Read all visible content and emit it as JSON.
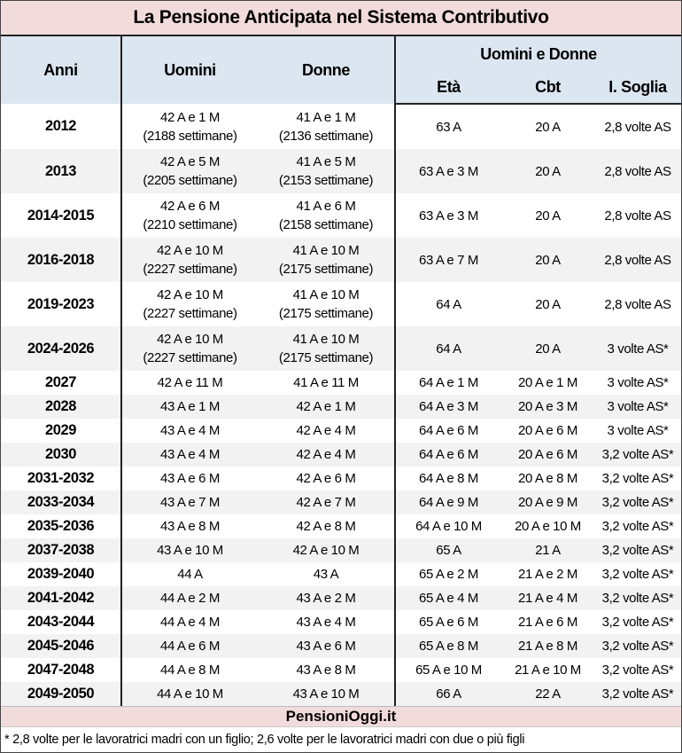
{
  "title": "La Pensione Anticipata nel Sistema Contributivo",
  "headers": {
    "anni": "Anni",
    "uomini": "Uomini",
    "donne": "Donne",
    "group": "Uomini e Donne",
    "eta": "Età",
    "cbt": "Cbt",
    "soglia": "I. Soglia"
  },
  "rows": [
    {
      "anni": "2012",
      "uomini": "42 A e 1 M",
      "uomini_sett": "(2188 settimane)",
      "donne": "41 A e 1 M",
      "donne_sett": "(2136 settimane)",
      "eta": "63 A",
      "cbt": "20 A",
      "soglia": "2,8 volte AS"
    },
    {
      "anni": "2013",
      "uomini": "42 A e 5 M",
      "uomini_sett": "(2205 settimane)",
      "donne": "41 A e 5 M",
      "donne_sett": "(2153 settimane)",
      "eta": "63 A e 3 M",
      "cbt": "20 A",
      "soglia": "2,8 volte AS"
    },
    {
      "anni": "2014-2015",
      "uomini": "42 A e 6 M",
      "uomini_sett": "(2210 settimane)",
      "donne": "41 A e 6 M",
      "donne_sett": "(2158 settimane)",
      "eta": "63 A e 3 M",
      "cbt": "20 A",
      "soglia": "2,8 volte AS"
    },
    {
      "anni": "2016-2018",
      "uomini": "42 A e 10 M",
      "uomini_sett": "(2227 settimane)",
      "donne": "41 A e 10 M",
      "donne_sett": "(2175 settimane)",
      "eta": "63 A e 7 M",
      "cbt": "20 A",
      "soglia": "2,8 volte AS"
    },
    {
      "anni": "2019-2023",
      "uomini": "42 A e 10 M",
      "uomini_sett": "(2227 settimane)",
      "donne": "41 A e 10 M",
      "donne_sett": "(2175 settimane)",
      "eta": "64 A",
      "cbt": "20 A",
      "soglia": "2,8 volte AS"
    },
    {
      "anni": "2024-2026",
      "uomini": "42 A e 10 M",
      "uomini_sett": "(2227 settimane)",
      "donne": "41 A e 10 M",
      "donne_sett": "(2175 settimane)",
      "eta": "64 A",
      "cbt": "20 A",
      "soglia": "3 volte AS*"
    },
    {
      "anni": "2027",
      "uomini": "42 A e 11 M",
      "donne": "41 A e 11 M",
      "eta": "64 A e 1 M",
      "cbt": "20 A e 1 M",
      "soglia": "3 volte AS*"
    },
    {
      "anni": "2028",
      "uomini": "43 A e 1 M",
      "donne": "42 A e 1 M",
      "eta": "64 A e 3 M",
      "cbt": "20 A e 3 M",
      "soglia": "3 volte AS*"
    },
    {
      "anni": "2029",
      "uomini": "43 A e 4 M",
      "donne": "42 A e 4 M",
      "eta": "64 A e 6 M",
      "cbt": "20 A e 6 M",
      "soglia": "3 volte AS*"
    },
    {
      "anni": "2030",
      "uomini": "43 A e 4 M",
      "donne": "42 A e 4 M",
      "eta": "64 A e 6 M",
      "cbt": "20 A e 6 M",
      "soglia": "3,2 volte AS*"
    },
    {
      "anni": "2031-2032",
      "uomini": "43 A e 6 M",
      "donne": "42 A e 6 M",
      "eta": "64 A e 8 M",
      "cbt": "20 A e 8 M",
      "soglia": "3,2 volte AS*"
    },
    {
      "anni": "2033-2034",
      "uomini": "43 A e 7 M",
      "donne": "42 A e 7 M",
      "eta": "64 A e 9 M",
      "cbt": "20 A e 9 M",
      "soglia": "3,2 volte AS*"
    },
    {
      "anni": "2035-2036",
      "uomini": "43 A e 8 M",
      "donne": "42 A e 8 M",
      "eta": "64 A e 10 M",
      "cbt": "20 A e 10 M",
      "soglia": "3,2 volte AS*"
    },
    {
      "anni": "2037-2038",
      "uomini": "43 A e 10 M",
      "donne": "42 A e 10 M",
      "eta": "65 A",
      "cbt": "21 A",
      "soglia": "3,2 volte AS*"
    },
    {
      "anni": "2039-2040",
      "uomini": "44 A",
      "donne": "43 A",
      "eta": "65 A e 2 M",
      "cbt": "21 A e 2 M",
      "soglia": "3,2 volte AS*"
    },
    {
      "anni": "2041-2042",
      "uomini": "44 A e 2 M",
      "donne": "43 A e 2 M",
      "eta": "65 A e 4 M",
      "cbt": "21 A e 4 M",
      "soglia": "3,2 volte AS*"
    },
    {
      "anni": "2043-2044",
      "uomini": "44 A e 4 M",
      "donne": "43 A e 4 M",
      "eta": "65 A e 6 M",
      "cbt": "21 A e 6 M",
      "soglia": "3,2 volte AS*"
    },
    {
      "anni": "2045-2046",
      "uomini": "44 A e 6 M",
      "donne": "43 A e 6 M",
      "eta": "65 A e 8 M",
      "cbt": "21 A e 8 M",
      "soglia": "3,2 volte AS*"
    },
    {
      "anni": "2047-2048",
      "uomini": "44 A e 8 M",
      "donne": "43 A e 8 M",
      "eta": "65 A e 10 M",
      "cbt": "21 A e 10 M",
      "soglia": "3,2 volte AS*"
    },
    {
      "anni": "2049-2050",
      "uomini": "44 A e 10 M",
      "donne": "43 A e 10 M",
      "eta": "66 A",
      "cbt": "22 A",
      "soglia": "3,2 volte AS*"
    }
  ],
  "footer": "PensioniOggi.it",
  "note": "* 2,8 volte per le lavoratrici madri con un figlio; 2,6 volte per le lavoratrici madri con due o più figli",
  "colors": {
    "title_bg": "#f2dcdb",
    "header_bg": "#dce6f1",
    "stripe": "#f2f2f2"
  }
}
